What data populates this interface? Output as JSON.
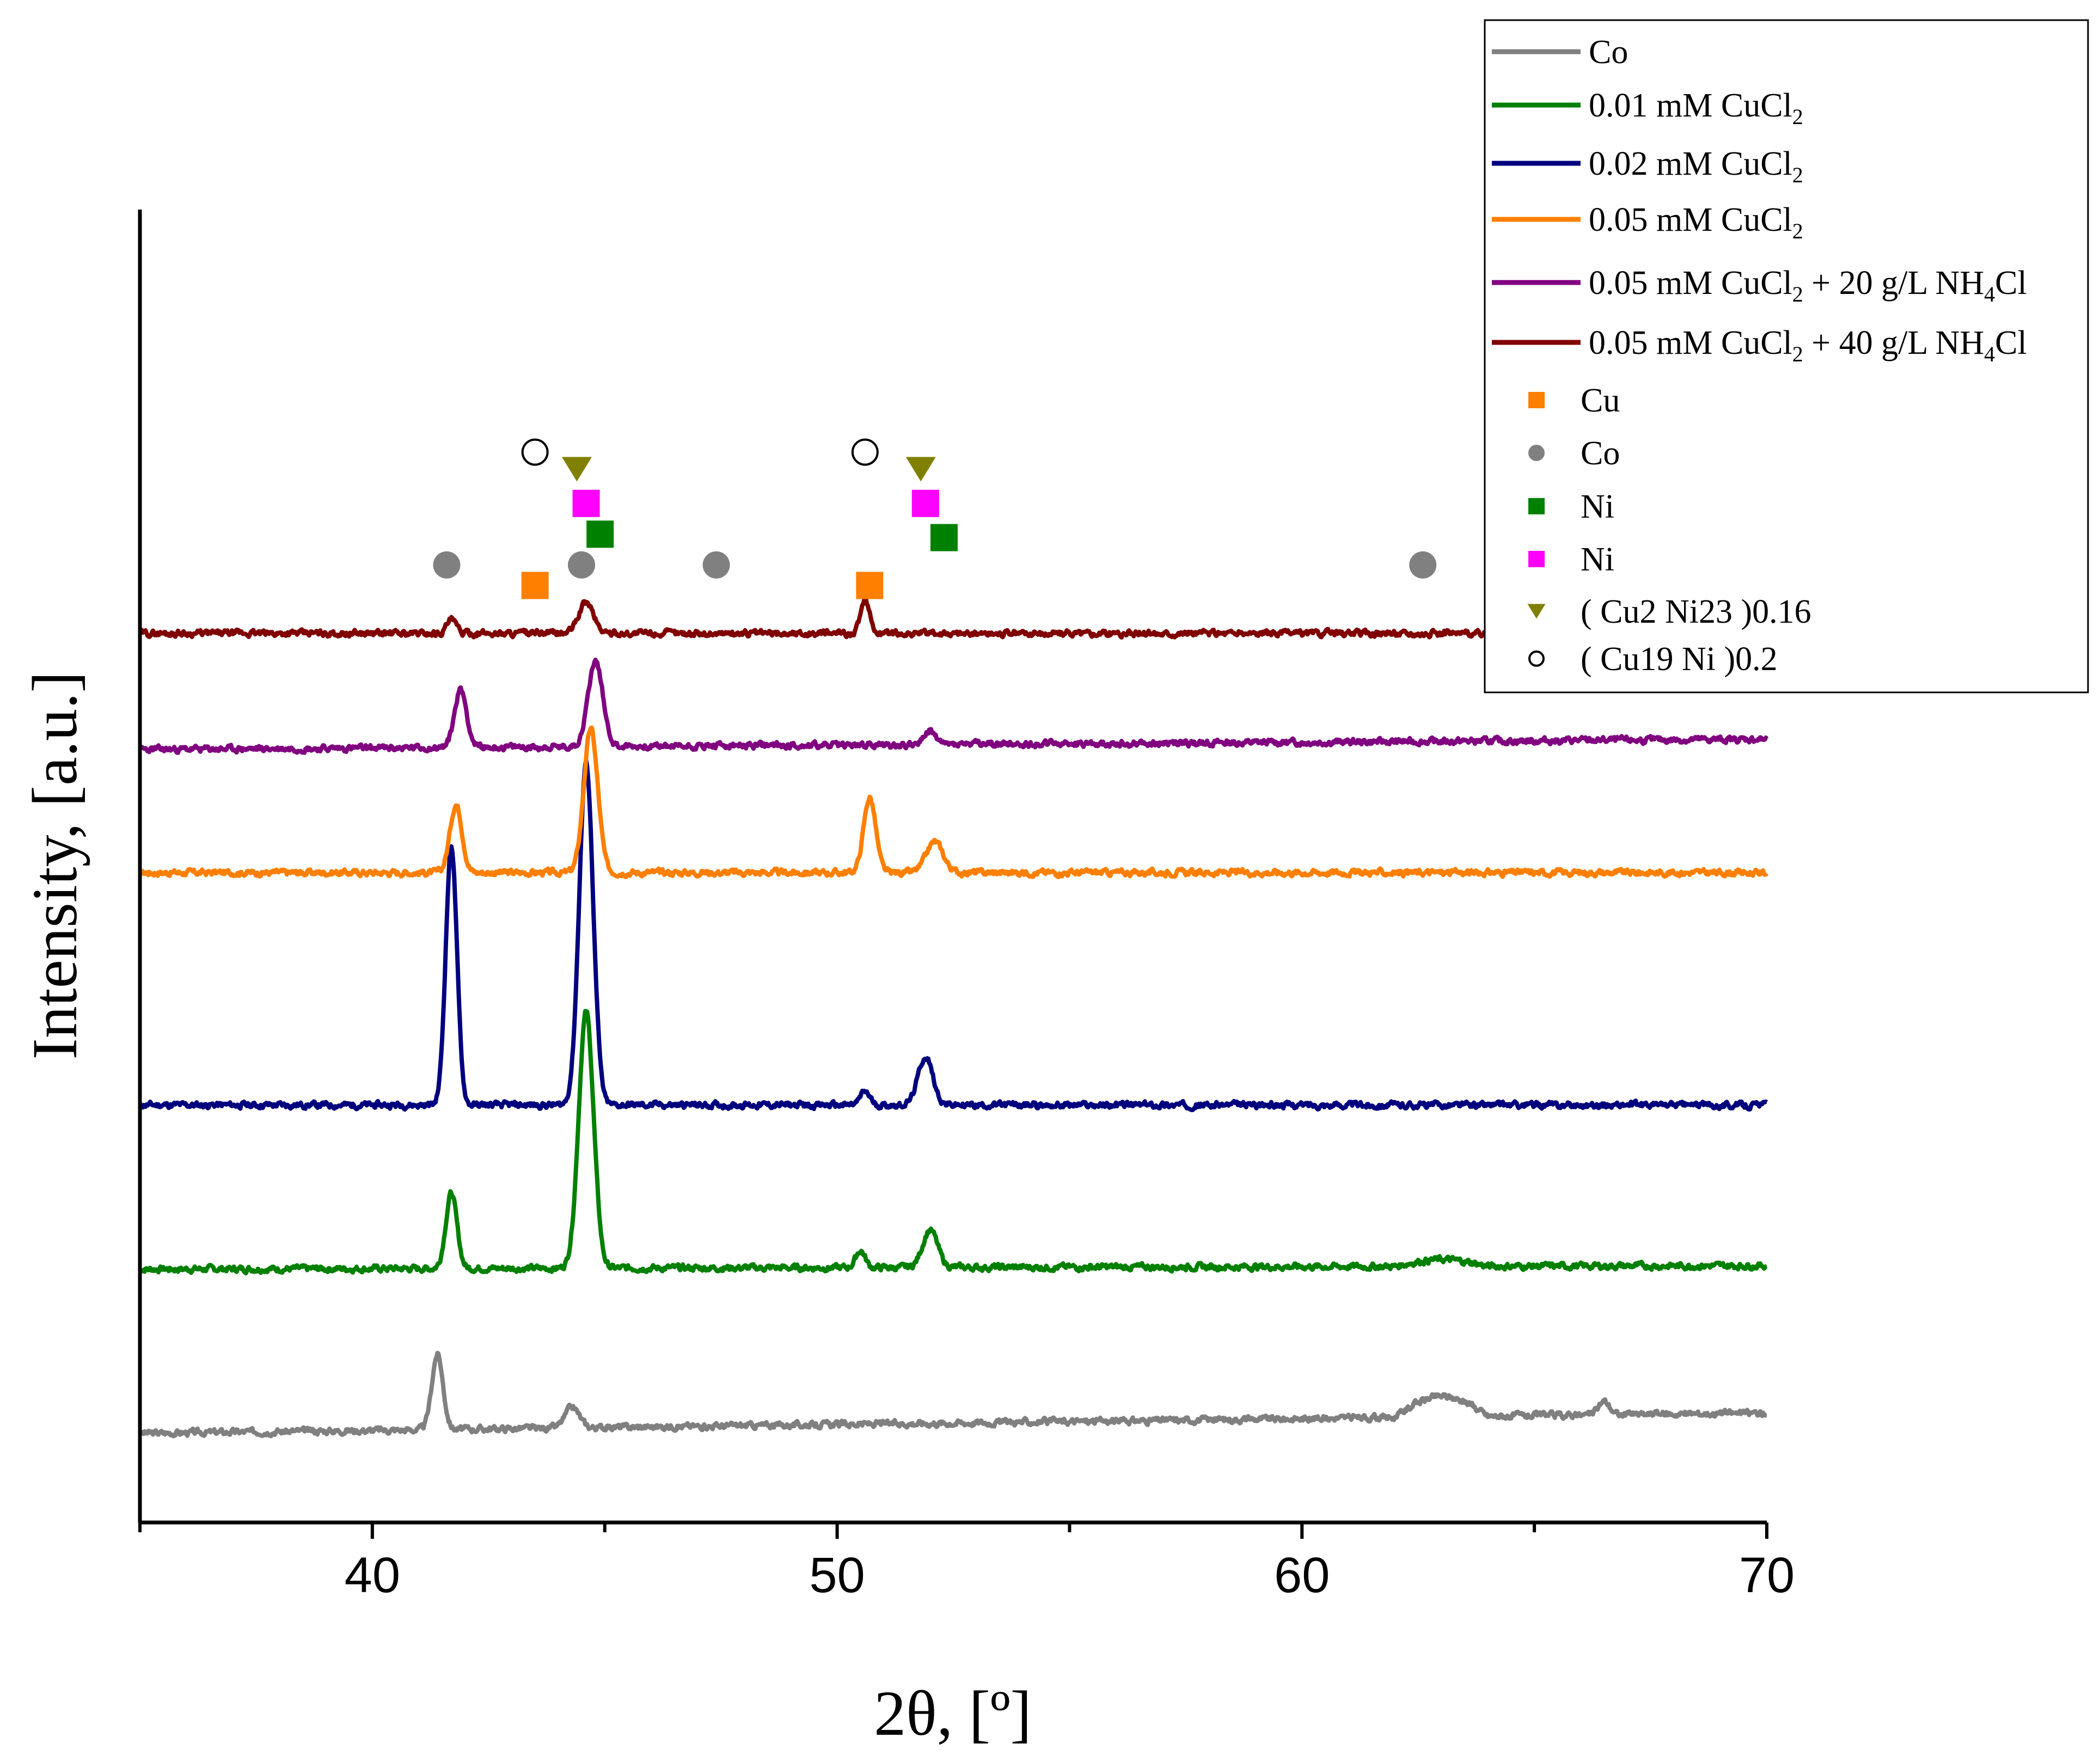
{
  "chart_data": {
    "type": "line",
    "title": "",
    "xlabel": "2θ, [º]",
    "ylabel": "Intensity, [a.u.]",
    "xlim": [
      35,
      70
    ],
    "xticks": [
      40,
      50,
      60,
      70
    ],
    "grid": false,
    "legend_position": "top-right",
    "y_units": "a.u. (stacked, offset traces)",
    "series": [
      {
        "name": "Co",
        "color": "#808080",
        "baseline": 0.0,
        "baseline_end": 0.6,
        "bumps": [
          {
            "from": 62,
            "to": 64,
            "h": 0.6
          }
        ],
        "peaks": [
          {
            "x": 41.4,
            "h": 2.2,
            "w": 0.12
          },
          {
            "x": 44.3,
            "h": 0.6,
            "w": 0.15
          },
          {
            "x": 66.5,
            "h": 0.4,
            "w": 0.12
          }
        ],
        "seed": 3
      },
      {
        "name": "0.01 mM CuCl2",
        "color": "#008000",
        "baseline": 4.8,
        "baseline_end": 4.9,
        "bumps": [
          {
            "from": 62,
            "to": 64,
            "h": 0.2
          }
        ],
        "peaks": [
          {
            "x": 41.7,
            "h": 2.2,
            "w": 0.12
          },
          {
            "x": 44.6,
            "h": 7.5,
            "w": 0.16
          },
          {
            "x": 50.5,
            "h": 0.5,
            "w": 0.1
          },
          {
            "x": 52.0,
            "h": 1.1,
            "w": 0.16
          }
        ],
        "seed": 7
      },
      {
        "name": "0.02 mM CuCl2",
        "color": "#00007f",
        "baseline": 9.6,
        "baseline_end": 9.6,
        "bumps": [],
        "peaks": [
          {
            "x": 41.7,
            "h": 7.6,
            "w": 0.12
          },
          {
            "x": 44.6,
            "h": 10.0,
            "w": 0.15
          },
          {
            "x": 50.6,
            "h": 0.4,
            "w": 0.1
          },
          {
            "x": 51.9,
            "h": 1.4,
            "w": 0.16
          }
        ],
        "seed": 11
      },
      {
        "name": "0.05 mM CuCl2",
        "color": "#ff7f00",
        "baseline": 16.4,
        "baseline_end": 16.4,
        "bumps": [],
        "peaks": [
          {
            "x": 41.8,
            "h": 2.0,
            "w": 0.13
          },
          {
            "x": 44.7,
            "h": 4.2,
            "w": 0.15
          },
          {
            "x": 50.7,
            "h": 2.2,
            "w": 0.13
          },
          {
            "x": 52.1,
            "h": 0.9,
            "w": 0.18
          }
        ],
        "seed": 17
      },
      {
        "name": "0.05 mM CuCl2 + 20 g/L NH4Cl",
        "color": "#800080",
        "baseline": 20.0,
        "baseline_end": 20.3,
        "bumps": [],
        "peaks": [
          {
            "x": 41.9,
            "h": 1.7,
            "w": 0.13
          },
          {
            "x": 44.8,
            "h": 2.5,
            "w": 0.16
          },
          {
            "x": 52.0,
            "h": 0.4,
            "w": 0.12
          }
        ],
        "seed": 23
      },
      {
        "name": "0.05 mM CuCl2 + 40 g/L NH4Cl",
        "color": "#800000",
        "baseline": 23.4,
        "baseline_end": 23.4,
        "bumps": [],
        "peaks": [
          {
            "x": 41.7,
            "h": 0.4,
            "w": 0.1
          },
          {
            "x": 44.6,
            "h": 0.9,
            "w": 0.16
          },
          {
            "x": 50.6,
            "h": 0.9,
            "w": 0.1
          }
        ],
        "seed": 29
      }
    ],
    "phase_markers": [
      {
        "label": "Cu",
        "shape": "square",
        "color": "#ff7f00",
        "positions": [
          {
            "x": 43.5,
            "y": 24.8
          },
          {
            "x": 50.7,
            "y": 24.8
          }
        ]
      },
      {
        "label": "Co",
        "shape": "circle",
        "color": "#808080",
        "positions": [
          {
            "x": 41.6,
            "y": 25.4
          },
          {
            "x": 44.5,
            "y": 25.4
          },
          {
            "x": 47.4,
            "y": 25.4
          },
          {
            "x": 62.6,
            "y": 25.4
          }
        ]
      },
      {
        "label": "Ni",
        "shape": "square",
        "color": "#008000",
        "positions": [
          {
            "x": 44.9,
            "y": 26.3
          },
          {
            "x": 52.3,
            "y": 26.2
          }
        ]
      },
      {
        "label": "Ni",
        "shape": "square",
        "color": "#ff00ff",
        "positions": [
          {
            "x": 44.6,
            "y": 27.2
          },
          {
            "x": 51.9,
            "y": 27.2
          }
        ]
      },
      {
        "label": "( Cu2 Ni23 )0.16",
        "shape": "triangle-down",
        "color": "#808000",
        "positions": [
          {
            "x": 44.4,
            "y": 28.2
          },
          {
            "x": 51.8,
            "y": 28.2
          }
        ]
      },
      {
        "label": "( Cu19 Ni )0.2",
        "shape": "circle-open",
        "color": "#000000",
        "positions": [
          {
            "x": 43.5,
            "y": 28.7
          },
          {
            "x": 50.6,
            "y": 28.7
          }
        ]
      }
    ]
  },
  "legend": {
    "lines": [
      {
        "pre": "Co",
        "sub1": "",
        "mid": "",
        "sub2": "",
        "post": "",
        "color": "#808080"
      },
      {
        "pre": "0.01 mM CuCl",
        "sub1": "2",
        "mid": "",
        "sub2": "",
        "post": "",
        "color": "#008000"
      },
      {
        "pre": "0.02 mM CuCl",
        "sub1": "2",
        "mid": "",
        "sub2": "",
        "post": "",
        "color": "#00007f"
      },
      {
        "pre": "0.05 mM CuCl",
        "sub1": "2",
        "mid": "",
        "sub2": "",
        "post": "",
        "color": "#ff7f00"
      },
      {
        "pre": "0.05 mM CuCl",
        "sub1": "2",
        "mid": " + 20 g/L NH",
        "sub2": "4",
        "post": "Cl",
        "color": "#800080"
      },
      {
        "pre": "0.05 mM CuCl",
        "sub1": "2",
        "mid": " + 40 g/L NH",
        "sub2": "4",
        "post": "Cl",
        "color": "#800000"
      }
    ],
    "markers": [
      {
        "label": "Cu",
        "shape": "square",
        "color": "#ff7f00"
      },
      {
        "label": "Co",
        "shape": "circle",
        "color": "#808080"
      },
      {
        "label": "Ni",
        "shape": "square",
        "color": "#008000"
      },
      {
        "label": "Ni",
        "shape": "square",
        "color": "#ff00ff"
      },
      {
        "label": "( Cu2 Ni23 )0.16",
        "shape": "triangle-down",
        "color": "#808000"
      },
      {
        "label": "( Cu19 Ni )0.2",
        "shape": "circle-open",
        "color": "#000000"
      }
    ]
  }
}
